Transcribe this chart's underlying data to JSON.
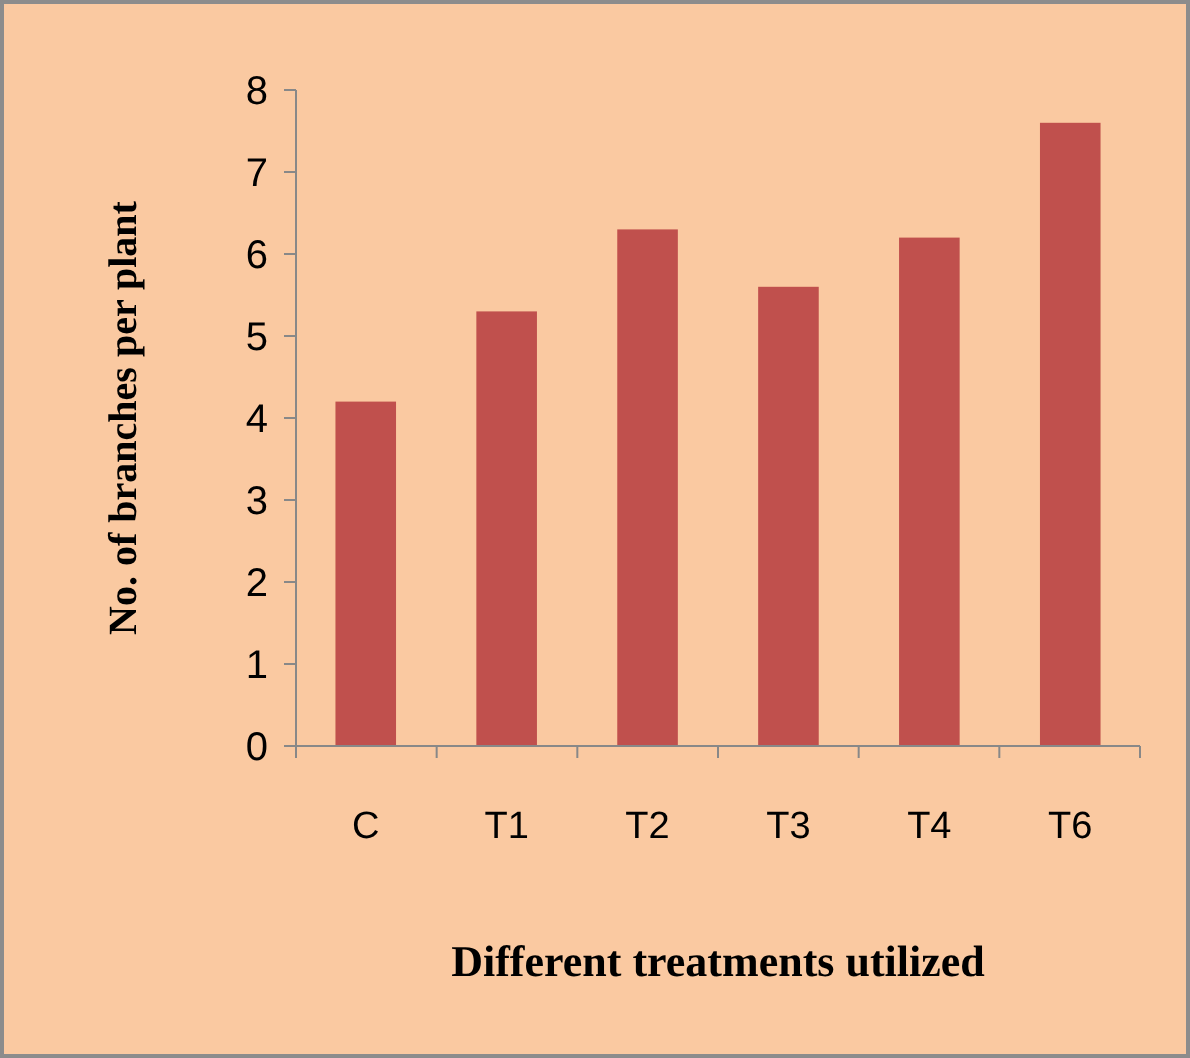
{
  "chart_data": {
    "type": "bar",
    "xlabel": "Different treatments utilized",
    "ylabel": "No. of branches per plant",
    "categories": [
      "C",
      "T1",
      "T2",
      "T3",
      "T4",
      "T6"
    ],
    "values": [
      4.2,
      5.3,
      6.3,
      5.6,
      6.2,
      7.6
    ],
    "color": "#c0504d",
    "ylim": [
      0,
      8
    ],
    "yticks": [
      0,
      1,
      2,
      3,
      4,
      5,
      6,
      7,
      8
    ],
    "grid": false
  }
}
